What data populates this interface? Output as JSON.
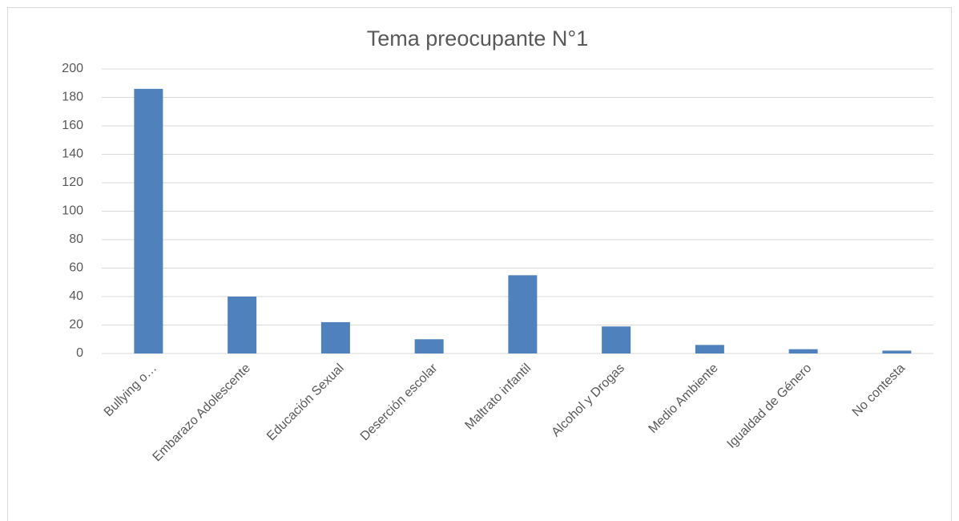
{
  "chart_data": {
    "type": "bar",
    "title": "Tema preocupante N°1",
    "categories": [
      "Bullying o…",
      "Embarazo Adolescente",
      "Educación Sexual",
      "Deserción escolar",
      "Maltrato infantil",
      "Alcohol y Drogas",
      "Medio Ambiente",
      "Igualdad de Género",
      "No contesta"
    ],
    "values": [
      186,
      40,
      22,
      10,
      55,
      19,
      6,
      3,
      2
    ],
    "color": "#4f81bd",
    "ylim": [
      0,
      200
    ],
    "yticks": [
      0,
      20,
      40,
      60,
      80,
      100,
      120,
      140,
      160,
      180,
      200
    ],
    "grid": true
  }
}
